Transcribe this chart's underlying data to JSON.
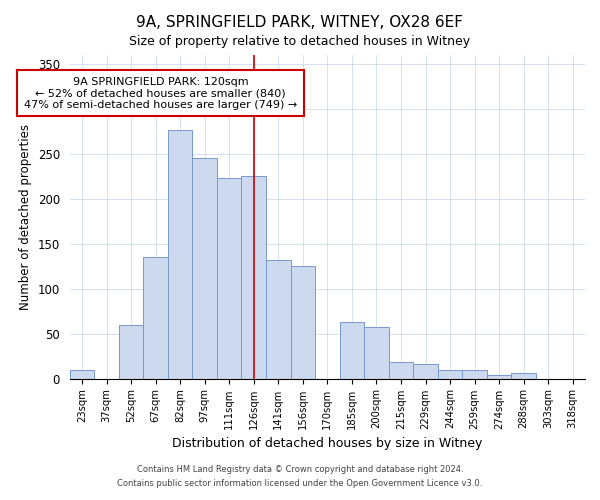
{
  "title": "9A, SPRINGFIELD PARK, WITNEY, OX28 6EF",
  "subtitle": "Size of property relative to detached houses in Witney",
  "xlabel": "Distribution of detached houses by size in Witney",
  "ylabel": "Number of detached properties",
  "bar_color": "#ccd9ee",
  "bar_edge_color": "#7799cc",
  "categories": [
    "23sqm",
    "37sqm",
    "52sqm",
    "67sqm",
    "82sqm",
    "97sqm",
    "111sqm",
    "126sqm",
    "141sqm",
    "156sqm",
    "170sqm",
    "185sqm",
    "200sqm",
    "215sqm",
    "229sqm",
    "244sqm",
    "259sqm",
    "274sqm",
    "288sqm",
    "303sqm",
    "318sqm"
  ],
  "values": [
    10,
    0,
    60,
    135,
    277,
    245,
    223,
    225,
    132,
    125,
    0,
    63,
    57,
    18,
    16,
    9,
    10,
    4,
    6,
    0,
    0
  ],
  "ylim": [
    0,
    360
  ],
  "yticks": [
    0,
    50,
    100,
    150,
    200,
    250,
    300,
    350
  ],
  "annotation_title": "9A SPRINGFIELD PARK: 120sqm",
  "annotation_line1": "← 52% of detached houses are smaller (840)",
  "annotation_line2": "47% of semi-detached houses are larger (749) →",
  "annotation_box_color": "#ffffff",
  "annotation_box_edge_color": "#cc0000",
  "vline_x_index": 7.0,
  "footer1": "Contains HM Land Registry data © Crown copyright and database right 2024.",
  "footer2": "Contains public sector information licensed under the Open Government Licence v3.0."
}
